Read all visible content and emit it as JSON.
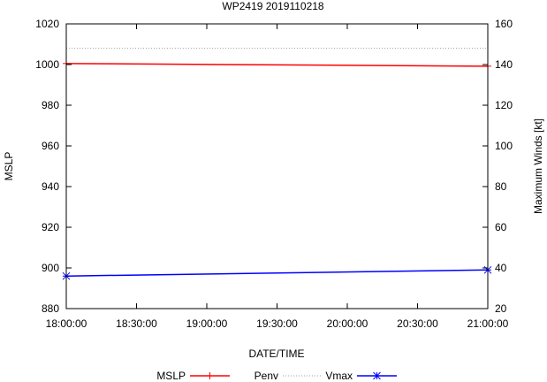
{
  "chart_data": {
    "type": "line",
    "title": "WP2419 2019110218",
    "xlabel": "DATE/TIME",
    "ylabel_left": "MSLP",
    "ylabel_right": "Maximum Winds [kt]",
    "x_ticks": [
      "18:00:00",
      "18:30:00",
      "19:00:00",
      "19:30:00",
      "20:00:00",
      "20:30:00",
      "21:00:00"
    ],
    "x_hours": [
      0,
      3
    ],
    "ylim_left": [
      880,
      1020
    ],
    "yticks_left": [
      "880",
      "900",
      "920",
      "940",
      "960",
      "980",
      "1000",
      "1020"
    ],
    "ylim_right": [
      20,
      160
    ],
    "yticks_right": [
      "20",
      "40",
      "60",
      "80",
      "100",
      "120",
      "140",
      "160"
    ],
    "series": [
      {
        "name": "MSLP",
        "axis": "left",
        "color": "#ff0000",
        "marker": "plus",
        "x": [
          0,
          3
        ],
        "values": [
          1000.5,
          999.2
        ]
      },
      {
        "name": "Penv",
        "axis": "left",
        "color": "#a0a0a0",
        "style": "dotted",
        "x": [
          0,
          3
        ],
        "values": [
          1008,
          1008
        ]
      },
      {
        "name": "Vmax",
        "axis": "right",
        "color": "#0000ff",
        "marker": "star",
        "x": [
          0,
          3
        ],
        "values": [
          36,
          39
        ]
      }
    ],
    "legend": {
      "placement": "bottom",
      "items": [
        "MSLP",
        "Penv",
        "Vmax"
      ]
    }
  }
}
